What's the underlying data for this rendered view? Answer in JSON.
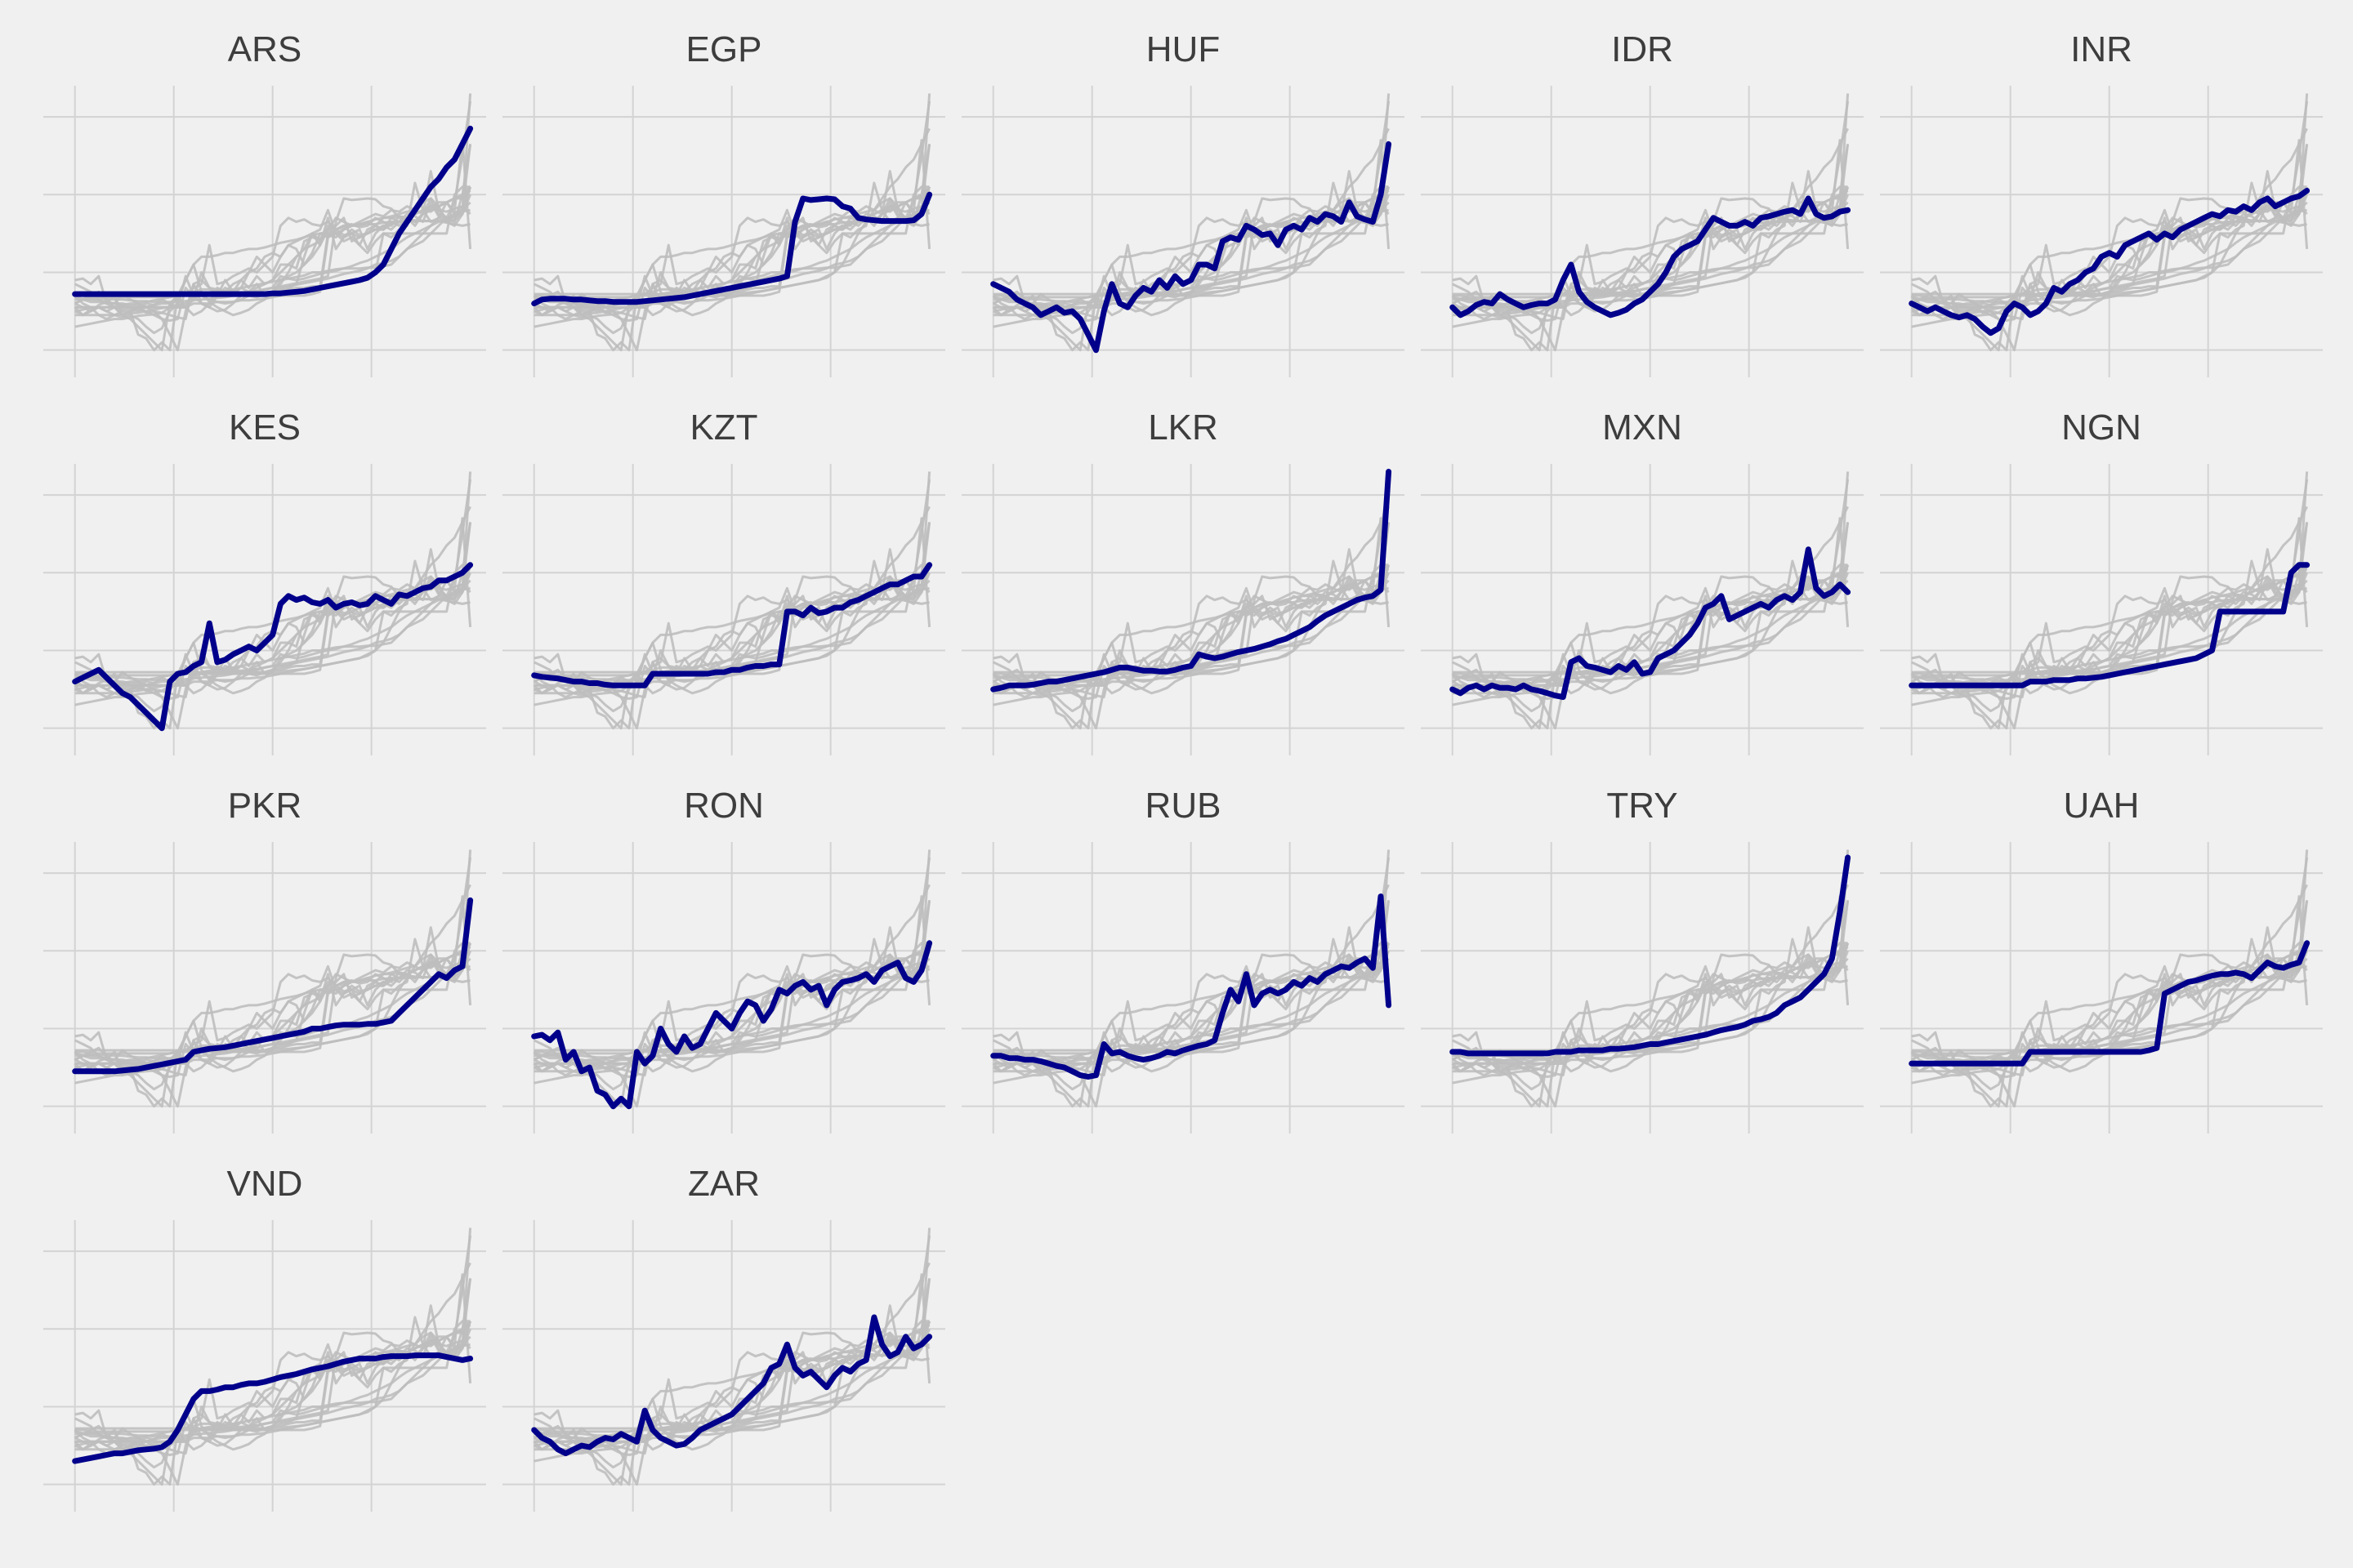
{
  "chart_data": {
    "type": "line",
    "layout": "small-multiples",
    "panels": [
      "ARS",
      "EGP",
      "HUF",
      "IDR",
      "INR",
      "KES",
      "KZT",
      "LKR",
      "MXN",
      "NGN",
      "PKR",
      "RON",
      "RUB",
      "TRY",
      "UAH",
      "VND",
      "ZAR"
    ],
    "x": [
      0,
      2,
      4,
      6,
      8,
      10,
      12,
      14,
      16,
      18,
      20,
      22,
      24,
      26,
      28,
      30,
      32,
      34,
      36,
      38,
      40,
      42,
      44,
      46,
      48,
      50,
      52,
      54,
      56,
      58,
      60,
      62,
      64,
      66,
      68,
      70,
      72,
      74,
      76,
      78,
      80,
      82,
      84,
      86,
      88,
      90,
      92,
      94,
      96,
      98,
      100
    ],
    "xlim": [
      -8,
      104
    ],
    "ylim": [
      -0.35,
      3.4
    ],
    "y_gridlines": [
      0,
      1,
      2,
      3
    ],
    "x_gridlines": [
      0,
      25,
      50,
      75
    ],
    "axis_labels_visible": false,
    "highlight_color": "#00008b",
    "context_color": "#bebebe",
    "series": [
      {
        "name": "ARS",
        "values": [
          0.72,
          0.72,
          0.72,
          0.72,
          0.72,
          0.72,
          0.72,
          0.72,
          0.72,
          0.72,
          0.72,
          0.72,
          0.72,
          0.72,
          0.72,
          0.72,
          0.72,
          0.72,
          0.72,
          0.72,
          0.72,
          0.72,
          0.72,
          0.72,
          0.72,
          0.73,
          0.73,
          0.74,
          0.75,
          0.76,
          0.78,
          0.8,
          0.82,
          0.84,
          0.86,
          0.88,
          0.9,
          0.93,
          1.0,
          1.1,
          1.3,
          1.5,
          1.65,
          1.8,
          1.95,
          2.1,
          2.2,
          2.35,
          2.45,
          2.65,
          2.85
        ]
      },
      {
        "name": "EGP",
        "values": [
          0.6,
          0.65,
          0.66,
          0.66,
          0.66,
          0.65,
          0.65,
          0.64,
          0.63,
          0.63,
          0.62,
          0.62,
          0.62,
          0.62,
          0.63,
          0.64,
          0.65,
          0.66,
          0.67,
          0.68,
          0.7,
          0.72,
          0.74,
          0.76,
          0.78,
          0.8,
          0.82,
          0.84,
          0.86,
          0.88,
          0.9,
          0.92,
          0.95,
          1.65,
          1.95,
          1.93,
          1.94,
          1.95,
          1.94,
          1.85,
          1.82,
          1.7,
          1.68,
          1.67,
          1.66,
          1.66,
          1.66,
          1.66,
          1.67,
          1.75,
          2.0
        ]
      },
      {
        "name": "HUF",
        "values": [
          0.85,
          0.8,
          0.75,
          0.65,
          0.6,
          0.55,
          0.45,
          0.5,
          0.55,
          0.48,
          0.5,
          0.4,
          0.2,
          0.0,
          0.5,
          0.85,
          0.6,
          0.55,
          0.7,
          0.8,
          0.75,
          0.9,
          0.8,
          0.95,
          0.85,
          0.9,
          1.1,
          1.1,
          1.05,
          1.4,
          1.45,
          1.42,
          1.6,
          1.55,
          1.48,
          1.5,
          1.35,
          1.55,
          1.6,
          1.55,
          1.7,
          1.65,
          1.75,
          1.72,
          1.65,
          1.9,
          1.72,
          1.68,
          1.65,
          2.0,
          2.65
        ]
      },
      {
        "name": "IDR",
        "values": [
          0.55,
          0.45,
          0.5,
          0.58,
          0.62,
          0.6,
          0.72,
          0.65,
          0.6,
          0.55,
          0.58,
          0.6,
          0.6,
          0.65,
          0.9,
          1.1,
          0.75,
          0.62,
          0.55,
          0.5,
          0.45,
          0.48,
          0.52,
          0.6,
          0.65,
          0.75,
          0.85,
          1.0,
          1.2,
          1.3,
          1.35,
          1.4,
          1.55,
          1.7,
          1.65,
          1.6,
          1.6,
          1.65,
          1.6,
          1.7,
          1.72,
          1.75,
          1.78,
          1.8,
          1.75,
          1.95,
          1.75,
          1.7,
          1.72,
          1.78,
          1.8
        ]
      },
      {
        "name": "INR",
        "values": [
          0.6,
          0.55,
          0.5,
          0.55,
          0.5,
          0.45,
          0.42,
          0.45,
          0.4,
          0.3,
          0.22,
          0.28,
          0.5,
          0.6,
          0.55,
          0.45,
          0.5,
          0.6,
          0.8,
          0.75,
          0.85,
          0.9,
          1.0,
          1.05,
          1.2,
          1.25,
          1.2,
          1.35,
          1.4,
          1.45,
          1.5,
          1.42,
          1.5,
          1.45,
          1.55,
          1.6,
          1.65,
          1.7,
          1.75,
          1.72,
          1.8,
          1.78,
          1.85,
          1.8,
          1.9,
          1.95,
          1.85,
          1.9,
          1.95,
          1.98,
          2.05
        ]
      },
      {
        "name": "KES",
        "values": [
          0.6,
          0.65,
          0.7,
          0.75,
          0.65,
          0.55,
          0.45,
          0.4,
          0.3,
          0.2,
          0.1,
          0.0,
          0.6,
          0.7,
          0.72,
          0.8,
          0.85,
          1.35,
          0.85,
          0.88,
          0.95,
          1.0,
          1.05,
          1.0,
          1.1,
          1.2,
          1.6,
          1.7,
          1.65,
          1.68,
          1.62,
          1.6,
          1.65,
          1.55,
          1.6,
          1.62,
          1.58,
          1.6,
          1.7,
          1.65,
          1.6,
          1.72,
          1.7,
          1.75,
          1.8,
          1.82,
          1.9,
          1.9,
          1.95,
          2.0,
          2.1
        ]
      },
      {
        "name": "KZT",
        "values": [
          0.68,
          0.66,
          0.65,
          0.64,
          0.62,
          0.6,
          0.6,
          0.58,
          0.58,
          0.56,
          0.55,
          0.55,
          0.55,
          0.55,
          0.55,
          0.7,
          0.7,
          0.7,
          0.7,
          0.7,
          0.7,
          0.7,
          0.7,
          0.72,
          0.72,
          0.75,
          0.75,
          0.78,
          0.8,
          0.8,
          0.82,
          0.82,
          1.5,
          1.5,
          1.45,
          1.55,
          1.48,
          1.5,
          1.55,
          1.55,
          1.62,
          1.65,
          1.7,
          1.75,
          1.8,
          1.85,
          1.85,
          1.9,
          1.95,
          1.95,
          2.1
        ]
      },
      {
        "name": "LKR",
        "values": [
          0.5,
          0.52,
          0.55,
          0.55,
          0.55,
          0.56,
          0.58,
          0.6,
          0.6,
          0.62,
          0.64,
          0.66,
          0.68,
          0.7,
          0.72,
          0.75,
          0.78,
          0.78,
          0.76,
          0.74,
          0.74,
          0.73,
          0.73,
          0.75,
          0.78,
          0.8,
          0.95,
          0.92,
          0.9,
          0.92,
          0.95,
          0.98,
          1.0,
          1.02,
          1.05,
          1.08,
          1.12,
          1.15,
          1.2,
          1.25,
          1.3,
          1.38,
          1.45,
          1.5,
          1.55,
          1.6,
          1.65,
          1.68,
          1.7,
          1.78,
          3.3
        ]
      },
      {
        "name": "MXN",
        "values": [
          0.5,
          0.45,
          0.52,
          0.55,
          0.5,
          0.55,
          0.52,
          0.52,
          0.5,
          0.55,
          0.5,
          0.48,
          0.45,
          0.42,
          0.4,
          0.85,
          0.9,
          0.8,
          0.78,
          0.75,
          0.72,
          0.8,
          0.75,
          0.85,
          0.7,
          0.72,
          0.9,
          0.95,
          1.0,
          1.1,
          1.2,
          1.35,
          1.55,
          1.6,
          1.7,
          1.4,
          1.45,
          1.5,
          1.55,
          1.6,
          1.55,
          1.65,
          1.7,
          1.65,
          1.75,
          2.3,
          1.8,
          1.7,
          1.75,
          1.85,
          1.75
        ]
      },
      {
        "name": "NGN",
        "values": [
          0.55,
          0.55,
          0.55,
          0.55,
          0.55,
          0.55,
          0.55,
          0.55,
          0.55,
          0.55,
          0.55,
          0.55,
          0.55,
          0.55,
          0.55,
          0.6,
          0.6,
          0.6,
          0.62,
          0.62,
          0.62,
          0.64,
          0.64,
          0.65,
          0.66,
          0.68,
          0.7,
          0.72,
          0.74,
          0.76,
          0.78,
          0.8,
          0.82,
          0.84,
          0.86,
          0.88,
          0.9,
          0.95,
          1.0,
          1.5,
          1.5,
          1.5,
          1.5,
          1.5,
          1.5,
          1.5,
          1.5,
          1.5,
          2.0,
          2.1,
          2.1
        ]
      },
      {
        "name": "PKR",
        "values": [
          0.45,
          0.45,
          0.45,
          0.45,
          0.45,
          0.45,
          0.46,
          0.47,
          0.48,
          0.5,
          0.52,
          0.54,
          0.56,
          0.58,
          0.6,
          0.7,
          0.72,
          0.74,
          0.75,
          0.76,
          0.78,
          0.8,
          0.82,
          0.84,
          0.86,
          0.88,
          0.9,
          0.92,
          0.94,
          0.96,
          1.0,
          1.0,
          1.02,
          1.04,
          1.05,
          1.05,
          1.05,
          1.06,
          1.06,
          1.08,
          1.1,
          1.2,
          1.3,
          1.4,
          1.5,
          1.6,
          1.7,
          1.65,
          1.75,
          1.8,
          2.65
        ]
      },
      {
        "name": "RON",
        "values": [
          0.9,
          0.92,
          0.85,
          0.95,
          0.6,
          0.7,
          0.45,
          0.5,
          0.2,
          0.15,
          0.0,
          0.1,
          0.0,
          0.7,
          0.55,
          0.65,
          1.0,
          0.8,
          0.7,
          0.9,
          0.75,
          0.8,
          1.0,
          1.2,
          1.1,
          1.0,
          1.2,
          1.35,
          1.3,
          1.1,
          1.25,
          1.5,
          1.45,
          1.55,
          1.6,
          1.5,
          1.55,
          1.3,
          1.5,
          1.6,
          1.62,
          1.65,
          1.7,
          1.6,
          1.75,
          1.8,
          1.85,
          1.65,
          1.6,
          1.75,
          2.1
        ]
      },
      {
        "name": "RUB",
        "values": [
          0.65,
          0.65,
          0.62,
          0.62,
          0.6,
          0.6,
          0.58,
          0.55,
          0.52,
          0.5,
          0.45,
          0.4,
          0.38,
          0.4,
          0.8,
          0.68,
          0.7,
          0.65,
          0.62,
          0.6,
          0.62,
          0.65,
          0.7,
          0.68,
          0.72,
          0.75,
          0.78,
          0.8,
          0.85,
          1.2,
          1.5,
          1.35,
          1.7,
          1.3,
          1.45,
          1.5,
          1.45,
          1.5,
          1.6,
          1.55,
          1.65,
          1.6,
          1.7,
          1.75,
          1.8,
          1.78,
          1.85,
          1.9,
          1.78,
          2.7,
          1.3
        ]
      },
      {
        "name": "TRY",
        "values": [
          0.7,
          0.7,
          0.68,
          0.68,
          0.68,
          0.68,
          0.68,
          0.68,
          0.68,
          0.68,
          0.68,
          0.68,
          0.68,
          0.7,
          0.7,
          0.7,
          0.72,
          0.72,
          0.72,
          0.72,
          0.74,
          0.74,
          0.75,
          0.76,
          0.78,
          0.8,
          0.8,
          0.82,
          0.84,
          0.86,
          0.88,
          0.9,
          0.92,
          0.95,
          0.98,
          1.0,
          1.02,
          1.05,
          1.1,
          1.12,
          1.15,
          1.2,
          1.3,
          1.35,
          1.4,
          1.5,
          1.6,
          1.7,
          1.9,
          2.5,
          3.2
        ]
      },
      {
        "name": "UAH",
        "values": [
          0.55,
          0.55,
          0.55,
          0.55,
          0.55,
          0.55,
          0.55,
          0.55,
          0.55,
          0.55,
          0.55,
          0.55,
          0.55,
          0.55,
          0.55,
          0.7,
          0.7,
          0.7,
          0.7,
          0.7,
          0.7,
          0.7,
          0.7,
          0.7,
          0.7,
          0.7,
          0.7,
          0.7,
          0.7,
          0.7,
          0.72,
          0.75,
          1.45,
          1.5,
          1.55,
          1.6,
          1.62,
          1.65,
          1.68,
          1.7,
          1.7,
          1.72,
          1.7,
          1.65,
          1.75,
          1.85,
          1.8,
          1.78,
          1.82,
          1.85,
          2.1
        ]
      },
      {
        "name": "VND",
        "values": [
          0.3,
          0.32,
          0.34,
          0.36,
          0.38,
          0.4,
          0.4,
          0.42,
          0.44,
          0.45,
          0.46,
          0.48,
          0.55,
          0.7,
          0.9,
          1.1,
          1.2,
          1.2,
          1.22,
          1.25,
          1.25,
          1.28,
          1.3,
          1.3,
          1.32,
          1.35,
          1.38,
          1.4,
          1.42,
          1.45,
          1.48,
          1.5,
          1.52,
          1.55,
          1.58,
          1.6,
          1.62,
          1.62,
          1.62,
          1.64,
          1.65,
          1.65,
          1.65,
          1.66,
          1.66,
          1.66,
          1.66,
          1.64,
          1.62,
          1.6,
          1.62
        ]
      },
      {
        "name": "ZAR",
        "values": [
          0.7,
          0.6,
          0.55,
          0.45,
          0.4,
          0.45,
          0.5,
          0.48,
          0.55,
          0.6,
          0.58,
          0.65,
          0.6,
          0.55,
          0.95,
          0.7,
          0.6,
          0.55,
          0.5,
          0.52,
          0.6,
          0.7,
          0.75,
          0.8,
          0.85,
          0.9,
          1.0,
          1.1,
          1.2,
          1.3,
          1.5,
          1.55,
          1.8,
          1.5,
          1.4,
          1.45,
          1.35,
          1.25,
          1.4,
          1.5,
          1.45,
          1.55,
          1.6,
          2.15,
          1.8,
          1.65,
          1.7,
          1.9,
          1.75,
          1.8,
          1.9
        ]
      }
    ]
  }
}
